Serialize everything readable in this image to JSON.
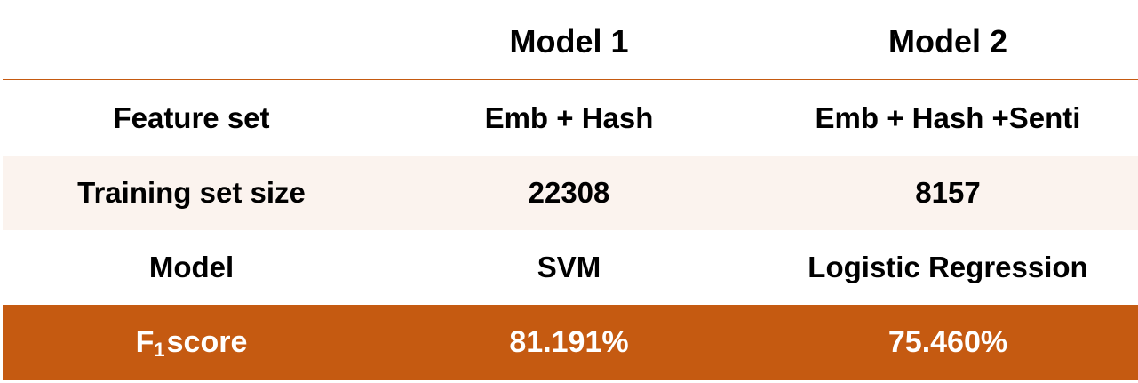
{
  "table": {
    "headers": [
      "",
      "Model 1",
      "Model 2"
    ],
    "rows": [
      {
        "label": "Feature set",
        "model1": "Emb + Hash",
        "model2": "Emb + Hash +Senti"
      },
      {
        "label": "Training set size",
        "model1": "22308",
        "model2": "8157"
      },
      {
        "label": "Model",
        "model1": "SVM",
        "model2": "Logistic Regression"
      },
      {
        "label_main": "F",
        "label_sub": "1",
        "label_rest": " score",
        "model1": "81.191%",
        "model2": "75.460%"
      }
    ]
  },
  "colors": {
    "accent": "#c55a11",
    "band": "#fbf3ee",
    "text": "#000000",
    "highlight_text": "#ffffff"
  }
}
